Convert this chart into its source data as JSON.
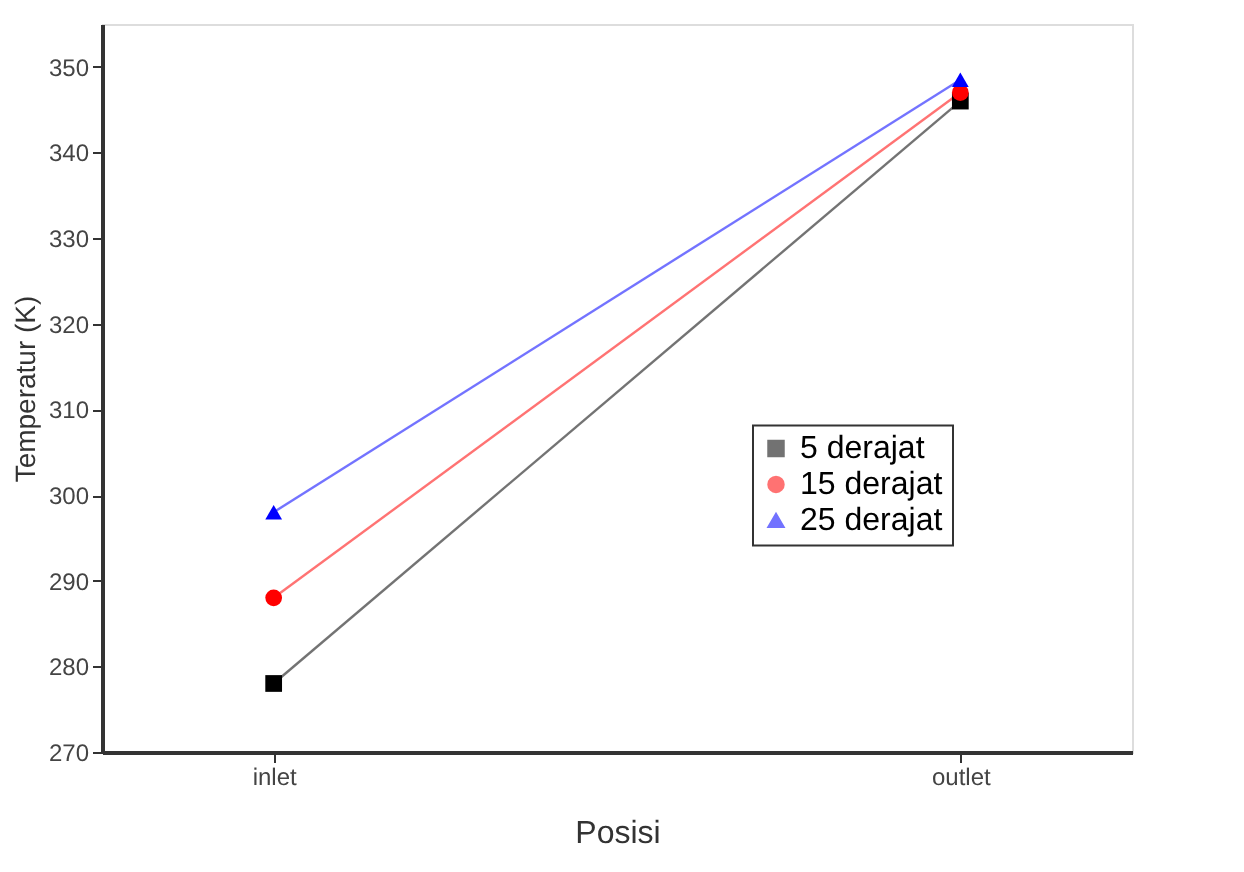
{
  "chart_data": {
    "type": "line",
    "xlabel": "Posisi",
    "ylabel": "Temperatur (K)",
    "categories": [
      "inlet",
      "outlet"
    ],
    "series": [
      {
        "name": "5 derajat",
        "color": "#000000",
        "marker": "square",
        "values": [
          278,
          346
        ]
      },
      {
        "name": "15 derajat",
        "color": "#ff0000",
        "marker": "circle",
        "values": [
          288,
          347
        ]
      },
      {
        "name": "25 derajat",
        "color": "#0000ff",
        "marker": "triangle",
        "values": [
          298,
          348.5
        ]
      }
    ],
    "ylim": [
      270,
      355
    ],
    "yticks": [
      270,
      280,
      290,
      300,
      310,
      320,
      330,
      340,
      350
    ],
    "grid": false,
    "legend": "right",
    "line_style": "solid"
  }
}
